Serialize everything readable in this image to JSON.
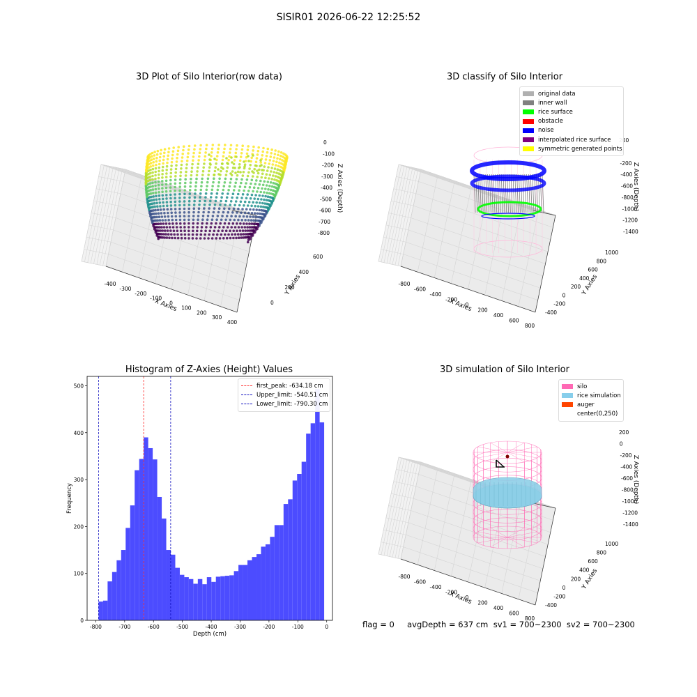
{
  "figure_title": "SISIR01 2026-06-22 12:25:52",
  "status_text": "flag = 0     avgDepth = 637 cm  sv1 = 700~2300  sv2 = 700~2300",
  "colors": {
    "hist_bar": "#4c4cff",
    "first_peak": "#ff3030",
    "limits": "#1010c0",
    "silo": "#ff69b4",
    "rice": "#7ec8e3",
    "auger": "#ff4500",
    "noise": "#0000ff",
    "rice_surface": "#00ff00",
    "inner_wall": "#808080"
  },
  "chart_data": [
    {
      "type": "scatter",
      "title": "3D Plot of Silo Interior(row data)",
      "xlabel": "X Axies",
      "ylabel": "Y Axies",
      "zlabel": "Z Axies (Depth)",
      "x_ticks": [
        "-400",
        "-300",
        "-200",
        "-100",
        "0",
        "100",
        "200",
        "300",
        "400"
      ],
      "y_ticks": [
        "0",
        "200",
        "400",
        "600"
      ],
      "z_ticks": [
        "0",
        "-100",
        "-200",
        "-300",
        "-400",
        "-500",
        "-600",
        "-700",
        "-800"
      ],
      "colormap": "viridis"
    },
    {
      "type": "scatter",
      "title": "3D classify of Silo Interior",
      "xlabel": "X Axies",
      "ylabel": "Y Axies",
      "zlabel": "Z Axies (Depth)",
      "x_ticks": [
        "-800",
        "-600",
        "-400",
        "-200",
        "0",
        "200",
        "400",
        "600",
        "800"
      ],
      "y_ticks": [
        "-400",
        "-200",
        "0",
        "200",
        "400",
        "600",
        "800",
        "1000"
      ],
      "z_ticks": [
        "200",
        "0",
        "-200",
        "-400",
        "-600",
        "-800",
        "-1000",
        "-1200",
        "-1400"
      ],
      "legend": [
        {
          "label": "original data",
          "color": "#b0b0b0"
        },
        {
          "label": "inner wall",
          "color": "#808080"
        },
        {
          "label": "rice surface",
          "color": "#00ff00"
        },
        {
          "label": "obstacle",
          "color": "#ff0000"
        },
        {
          "label": "noise",
          "color": "#0000ff"
        },
        {
          "label": "interpolated rice surface",
          "color": "#800080"
        },
        {
          "label": "symmetric generated points",
          "color": "#ffff00"
        }
      ]
    },
    {
      "type": "bar",
      "title": "Histogram of Z-Axies (Height) Values",
      "xlabel": "Depth (cm)",
      "ylabel": "Frequency",
      "xlim": [
        -830,
        20
      ],
      "ylim": [
        0,
        520
      ],
      "x_ticks": [
        -800,
        -700,
        -600,
        -500,
        -400,
        -300,
        -200,
        -100,
        0
      ],
      "y_ticks": [
        0,
        100,
        200,
        300,
        400,
        500
      ],
      "bin_start": -790.3,
      "bin_width": 15.63,
      "values": [
        40,
        42,
        83,
        103,
        128,
        150,
        197,
        245,
        320,
        344,
        390,
        367,
        343,
        263,
        217,
        150,
        140,
        112,
        97,
        92,
        88,
        78,
        88,
        77,
        92,
        82,
        93,
        94,
        95,
        96,
        105,
        118,
        118,
        128,
        135,
        141,
        157,
        162,
        178,
        203,
        203,
        248,
        258,
        298,
        312,
        338,
        398,
        420,
        493,
        422
      ],
      "vlines": [
        {
          "label": "first_peak: -634.18 cm",
          "x": -634.18,
          "color": "#ff3030"
        },
        {
          "label": "Upper_limit: -540.51 cm",
          "x": -540.51,
          "color": "#1010c0"
        },
        {
          "label": "Lower_limit: -790.30 cm",
          "x": -790.3,
          "color": "#1010c0"
        }
      ],
      "legend_position": "top-right"
    },
    {
      "type": "scatter",
      "title": "3D simulation of Silo Interior",
      "xlabel": "X Axies",
      "ylabel": "Y Axies",
      "zlabel": "Z Axies (Depth)",
      "x_ticks": [
        "-800",
        "-600",
        "-400",
        "-200",
        "0",
        "200",
        "400",
        "600",
        "800"
      ],
      "y_ticks": [
        "-400",
        "-200",
        "0",
        "200",
        "400",
        "600",
        "800",
        "1000"
      ],
      "z_ticks": [
        "200",
        "0",
        "-200",
        "-400",
        "-600",
        "-800",
        "-1000",
        "-1200",
        "-1400"
      ],
      "legend": [
        {
          "label": "silo",
          "color": "#ff69b4"
        },
        {
          "label": "rice simulation",
          "color": "#87ceeb"
        },
        {
          "label": "auger",
          "color": "#ff4500"
        },
        {
          "label": "center(0,250)",
          "color": ""
        }
      ]
    }
  ]
}
